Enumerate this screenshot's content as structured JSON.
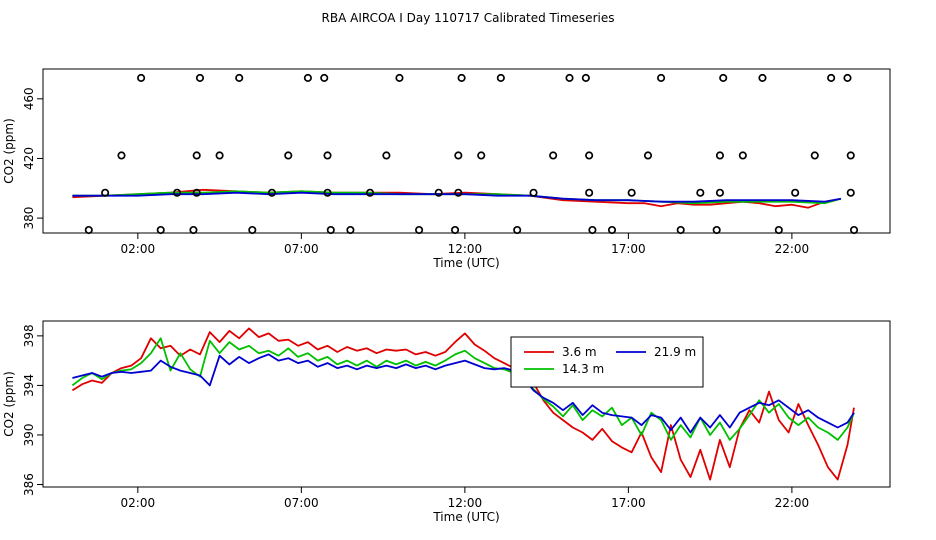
{
  "title": "RBA AIRCOA I  Day 110717  Calibrated Timeseries",
  "colors": {
    "red": "#e00000",
    "green": "#00c000",
    "blue": "#0000d0",
    "black": "#000000"
  },
  "chart_data": [
    {
      "type": "line",
      "name": "top-panel",
      "xlabel": "Time (UTC)",
      "ylabel": "CO2 (ppm)",
      "xlim": [
        -0.9,
        25.0
      ],
      "ylim": [
        370.0,
        480.0
      ],
      "x_ticks": [
        2,
        7,
        12,
        17,
        22
      ],
      "x_tick_labels": [
        "02:00",
        "07:00",
        "12:00",
        "17:00",
        "22:00"
      ],
      "y_ticks": [
        380,
        420,
        460
      ],
      "y_tick_labels": [
        "380",
        "420",
        "460"
      ],
      "series": [
        {
          "color": "red",
          "x": [
            0.0,
            1.0,
            2.0,
            3.0,
            4.0,
            5.0,
            6.0,
            7.0,
            8.0,
            9.0,
            10.0,
            11.0,
            12.0,
            13.0,
            14.0,
            15.0,
            16.0,
            17.0,
            17.5,
            18.0,
            18.5,
            19.0,
            19.5,
            20.0,
            20.5,
            21.0,
            21.5,
            22.0,
            22.5,
            23.0,
            23.5
          ],
          "y": [
            394,
            395,
            396,
            397,
            399,
            398,
            397,
            398,
            397,
            397,
            397,
            396,
            397,
            396,
            395,
            392,
            391,
            390,
            390,
            388,
            390,
            389,
            389,
            390,
            391,
            390,
            388,
            389,
            387,
            391,
            393
          ]
        },
        {
          "color": "green",
          "x": [
            0.0,
            1.0,
            2.0,
            3.0,
            4.0,
            5.0,
            6.0,
            7.0,
            8.0,
            9.0,
            10.0,
            11.0,
            12.0,
            13.0,
            14.0,
            15.0,
            16.0,
            17.0,
            18.0,
            19.0,
            20.0,
            21.0,
            22.0,
            23.0,
            23.5
          ],
          "y": [
            395,
            395,
            396,
            397,
            397,
            398,
            397,
            398,
            397,
            397,
            396,
            396,
            396,
            396,
            395,
            393,
            392,
            392,
            391,
            390,
            391,
            391,
            391,
            390,
            393
          ]
        },
        {
          "color": "blue",
          "x": [
            0.0,
            1.0,
            2.0,
            3.0,
            4.0,
            5.0,
            6.0,
            7.0,
            8.0,
            9.0,
            10.0,
            11.0,
            12.0,
            13.0,
            14.0,
            15.0,
            16.0,
            17.0,
            18.0,
            19.0,
            20.0,
            21.0,
            22.0,
            23.0,
            23.5
          ],
          "y": [
            395,
            395,
            395,
            396,
            396,
            397,
            396,
            397,
            396,
            396,
            396,
            396,
            396,
            395,
            395,
            393,
            392,
            392,
            391,
            391,
            392,
            392,
            392,
            391,
            393
          ]
        }
      ],
      "points": [
        {
          "x": 0.5,
          "y": 372
        },
        {
          "x": 1.0,
          "y": 397
        },
        {
          "x": 1.5,
          "y": 422
        },
        {
          "x": 2.1,
          "y": 474
        },
        {
          "x": 2.7,
          "y": 372
        },
        {
          "x": 3.2,
          "y": 397
        },
        {
          "x": 3.7,
          "y": 372
        },
        {
          "x": 3.8,
          "y": 397
        },
        {
          "x": 3.8,
          "y": 422
        },
        {
          "x": 3.9,
          "y": 474
        },
        {
          "x": 4.5,
          "y": 422
        },
        {
          "x": 5.1,
          "y": 474
        },
        {
          "x": 5.5,
          "y": 372
        },
        {
          "x": 6.1,
          "y": 397
        },
        {
          "x": 6.6,
          "y": 422
        },
        {
          "x": 7.2,
          "y": 474
        },
        {
          "x": 7.7,
          "y": 474
        },
        {
          "x": 7.8,
          "y": 422
        },
        {
          "x": 7.8,
          "y": 397
        },
        {
          "x": 7.9,
          "y": 372
        },
        {
          "x": 8.5,
          "y": 372
        },
        {
          "x": 9.1,
          "y": 397
        },
        {
          "x": 9.6,
          "y": 422
        },
        {
          "x": 10.0,
          "y": 474
        },
        {
          "x": 10.6,
          "y": 372
        },
        {
          "x": 11.2,
          "y": 397
        },
        {
          "x": 11.7,
          "y": 372
        },
        {
          "x": 11.8,
          "y": 397
        },
        {
          "x": 11.8,
          "y": 422
        },
        {
          "x": 11.9,
          "y": 474
        },
        {
          "x": 12.5,
          "y": 422
        },
        {
          "x": 13.1,
          "y": 474
        },
        {
          "x": 13.6,
          "y": 372
        },
        {
          "x": 14.1,
          "y": 397
        },
        {
          "x": 14.7,
          "y": 422
        },
        {
          "x": 15.2,
          "y": 474
        },
        {
          "x": 15.7,
          "y": 474
        },
        {
          "x": 15.8,
          "y": 422
        },
        {
          "x": 15.8,
          "y": 397
        },
        {
          "x": 15.9,
          "y": 372
        },
        {
          "x": 16.5,
          "y": 372
        },
        {
          "x": 17.1,
          "y": 397
        },
        {
          "x": 17.6,
          "y": 422
        },
        {
          "x": 18.0,
          "y": 474
        },
        {
          "x": 18.6,
          "y": 372
        },
        {
          "x": 19.2,
          "y": 397
        },
        {
          "x": 19.7,
          "y": 372
        },
        {
          "x": 19.8,
          "y": 397
        },
        {
          "x": 19.8,
          "y": 422
        },
        {
          "x": 19.9,
          "y": 474
        },
        {
          "x": 20.5,
          "y": 422
        },
        {
          "x": 21.1,
          "y": 474
        },
        {
          "x": 21.6,
          "y": 372
        },
        {
          "x": 22.1,
          "y": 397
        },
        {
          "x": 22.7,
          "y": 422
        },
        {
          "x": 23.2,
          "y": 474
        },
        {
          "x": 23.7,
          "y": 474
        },
        {
          "x": 23.8,
          "y": 422
        },
        {
          "x": 23.8,
          "y": 397
        },
        {
          "x": 23.9,
          "y": 372
        }
      ]
    },
    {
      "type": "line",
      "name": "bottom-panel",
      "xlabel": "Time (UTC)",
      "ylabel": "CO2 (ppm)",
      "xlim": [
        -0.9,
        25.0
      ],
      "ylim": [
        385.8,
        399.2
      ],
      "x_ticks": [
        2,
        7,
        12,
        17,
        22
      ],
      "x_tick_labels": [
        "02:00",
        "07:00",
        "12:00",
        "17:00",
        "22:00"
      ],
      "y_ticks": [
        386,
        390,
        394,
        398
      ],
      "y_tick_labels": [
        "386",
        "390",
        "394",
        "398"
      ],
      "legend": {
        "position": "top-center",
        "entries": [
          {
            "label": "3.6 m",
            "color": "red"
          },
          {
            "label": "21.9 m",
            "color": "blue"
          },
          {
            "label": "14.3 m",
            "color": "green"
          }
        ]
      },
      "series": [
        {
          "name": "3.6 m",
          "color": "red",
          "x": [
            0.0,
            0.3,
            0.6,
            0.9,
            1.2,
            1.5,
            1.8,
            2.1,
            2.4,
            2.7,
            3.0,
            3.3,
            3.6,
            3.9,
            4.2,
            4.5,
            4.8,
            5.1,
            5.4,
            5.7,
            6.0,
            6.3,
            6.6,
            6.9,
            7.2,
            7.5,
            7.8,
            8.1,
            8.4,
            8.7,
            9.0,
            9.3,
            9.6,
            9.9,
            10.2,
            10.5,
            10.8,
            11.1,
            11.4,
            11.7,
            12.0,
            12.3,
            12.6,
            12.9,
            13.2,
            13.5,
            13.8,
            14.1,
            14.4,
            14.7,
            15.0,
            15.3,
            15.6,
            15.9,
            16.2,
            16.5,
            16.8,
            17.1,
            17.4,
            17.7,
            18.0,
            18.3,
            18.6,
            18.9,
            19.2,
            19.5,
            19.8,
            20.1,
            20.4,
            20.7,
            21.0,
            21.3,
            21.6,
            21.9,
            22.2,
            22.5,
            22.8,
            23.1,
            23.4,
            23.7,
            23.9
          ],
          "y": [
            393.6,
            394.1,
            394.4,
            394.2,
            395.0,
            395.4,
            395.6,
            396.2,
            397.8,
            397.0,
            397.2,
            396.4,
            396.9,
            396.5,
            398.3,
            397.5,
            398.4,
            397.8,
            398.6,
            397.9,
            398.2,
            397.6,
            397.7,
            397.2,
            397.5,
            396.9,
            397.2,
            396.7,
            397.1,
            396.8,
            397.0,
            396.6,
            396.9,
            396.8,
            396.9,
            396.5,
            396.7,
            396.4,
            396.7,
            397.5,
            398.2,
            397.3,
            396.8,
            396.2,
            395.8,
            395.4,
            394.8,
            394.2,
            392.8,
            391.8,
            391.2,
            390.6,
            390.2,
            389.6,
            390.5,
            389.5,
            389.0,
            388.6,
            390.2,
            388.2,
            387.0,
            390.8,
            388.0,
            386.6,
            388.8,
            386.4,
            389.6,
            387.4,
            390.5,
            392.0,
            391.0,
            393.5,
            391.2,
            390.2,
            392.5,
            390.8,
            389.2,
            387.4,
            386.4,
            389.2,
            392.2
          ]
        },
        {
          "name": "14.3 m",
          "color": "green",
          "x": [
            0.0,
            0.3,
            0.6,
            0.9,
            1.2,
            1.5,
            1.8,
            2.1,
            2.4,
            2.7,
            3.0,
            3.3,
            3.6,
            3.9,
            4.2,
            4.5,
            4.8,
            5.1,
            5.4,
            5.7,
            6.0,
            6.3,
            6.6,
            6.9,
            7.2,
            7.5,
            7.8,
            8.1,
            8.4,
            8.7,
            9.0,
            9.3,
            9.6,
            9.9,
            10.2,
            10.5,
            10.8,
            11.1,
            11.4,
            11.7,
            12.0,
            12.3,
            12.6,
            12.9,
            13.2,
            13.5,
            13.8,
            14.1,
            14.4,
            14.7,
            15.0,
            15.3,
            15.6,
            15.9,
            16.2,
            16.5,
            16.8,
            17.1,
            17.4,
            17.7,
            18.0,
            18.3,
            18.6,
            18.9,
            19.2,
            19.5,
            19.8,
            20.1,
            20.4,
            20.7,
            21.0,
            21.3,
            21.6,
            21.9,
            22.2,
            22.5,
            22.8,
            23.1,
            23.4,
            23.7,
            23.9
          ],
          "y": [
            394.0,
            394.6,
            395.0,
            394.5,
            395.0,
            395.2,
            395.3,
            395.8,
            396.6,
            397.8,
            395.2,
            396.6,
            395.3,
            394.7,
            397.6,
            396.6,
            397.5,
            396.9,
            397.2,
            396.6,
            396.8,
            396.4,
            397.0,
            396.3,
            396.6,
            396.0,
            396.3,
            395.7,
            396.0,
            395.6,
            396.0,
            395.5,
            396.0,
            395.7,
            396.0,
            395.6,
            395.9,
            395.6,
            396.0,
            396.5,
            396.8,
            396.2,
            395.8,
            395.4,
            395.3,
            395.0,
            394.4,
            393.7,
            392.9,
            392.3,
            391.5,
            392.4,
            391.2,
            392.0,
            391.5,
            392.2,
            390.8,
            391.4,
            390.0,
            391.8,
            391.2,
            389.6,
            390.8,
            389.8,
            391.4,
            390.0,
            391.0,
            389.6,
            390.5,
            391.6,
            392.8,
            391.8,
            392.5,
            391.4,
            390.8,
            391.4,
            390.6,
            390.2,
            389.6,
            390.6,
            391.8
          ]
        },
        {
          "name": "21.9 m",
          "color": "blue",
          "x": [
            0.0,
            0.3,
            0.6,
            0.9,
            1.2,
            1.5,
            1.8,
            2.1,
            2.4,
            2.7,
            3.0,
            3.3,
            3.6,
            3.9,
            4.2,
            4.5,
            4.8,
            5.1,
            5.4,
            5.7,
            6.0,
            6.3,
            6.6,
            6.9,
            7.2,
            7.5,
            7.8,
            8.1,
            8.4,
            8.7,
            9.0,
            9.3,
            9.6,
            9.9,
            10.2,
            10.5,
            10.8,
            11.1,
            11.4,
            11.7,
            12.0,
            12.3,
            12.6,
            12.9,
            13.2,
            13.5,
            13.8,
            14.1,
            14.4,
            14.7,
            15.0,
            15.3,
            15.6,
            15.9,
            16.2,
            16.5,
            16.8,
            17.1,
            17.4,
            17.7,
            18.0,
            18.3,
            18.6,
            18.9,
            19.2,
            19.5,
            19.8,
            20.1,
            20.4,
            20.7,
            21.0,
            21.3,
            21.6,
            21.9,
            22.2,
            22.5,
            22.8,
            23.1,
            23.4,
            23.7,
            23.9
          ],
          "y": [
            394.6,
            394.8,
            395.0,
            394.7,
            395.0,
            395.1,
            395.0,
            395.1,
            395.2,
            396.0,
            395.5,
            395.2,
            395.0,
            394.8,
            394.0,
            396.4,
            395.7,
            396.3,
            395.8,
            396.2,
            396.5,
            396.0,
            396.2,
            395.8,
            396.0,
            395.5,
            395.8,
            395.4,
            395.6,
            395.3,
            395.6,
            395.4,
            395.6,
            395.4,
            395.7,
            395.4,
            395.6,
            395.3,
            395.6,
            395.8,
            396.0,
            395.7,
            395.4,
            395.3,
            395.4,
            395.2,
            394.6,
            393.6,
            393.0,
            392.6,
            392.0,
            392.6,
            391.6,
            392.4,
            391.8,
            391.6,
            391.5,
            391.4,
            390.8,
            391.6,
            391.4,
            390.4,
            391.4,
            390.2,
            391.4,
            390.6,
            391.6,
            390.6,
            391.8,
            392.2,
            392.6,
            392.4,
            392.8,
            392.2,
            391.6,
            392.0,
            391.4,
            391.0,
            390.6,
            391.0,
            391.8
          ]
        }
      ]
    }
  ]
}
